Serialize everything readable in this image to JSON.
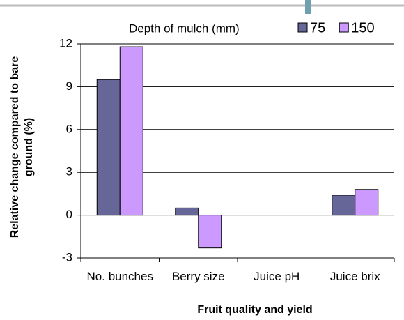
{
  "chart_data": {
    "type": "bar",
    "legend_title": "Depth of mulch (mm)",
    "xlabel": "Fruit quality and yield",
    "ylabel": "Relative change compared to bare ground (%)",
    "categories": [
      "No. bunches",
      "Berry size",
      "Juice pH",
      "Juice brix"
    ],
    "series": [
      {
        "name": "75",
        "color": "#666699",
        "values": [
          9.5,
          0.5,
          0,
          1.4
        ]
      },
      {
        "name": "150",
        "color": "#cc99ff",
        "values": [
          11.8,
          -2.3,
          0,
          1.8
        ]
      }
    ],
    "ylim": [
      -3,
      12
    ],
    "yticks": [
      -3,
      0,
      3,
      6,
      9,
      12
    ],
    "grid": true,
    "legend": "top"
  }
}
